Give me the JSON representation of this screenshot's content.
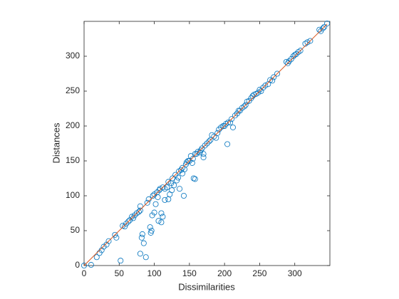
{
  "chart_data": {
    "type": "scatter",
    "xlabel": "Dissimilarities",
    "ylabel": "Distances",
    "xlim": [
      0,
      350
    ],
    "ylim": [
      0,
      350
    ],
    "xticks": [
      0,
      50,
      100,
      150,
      200,
      250,
      300
    ],
    "yticks": [
      0,
      50,
      100,
      150,
      200,
      250,
      300
    ],
    "series": [
      {
        "type": "scatter",
        "color": "#0072bd",
        "x": [
          0,
          10,
          18,
          22,
          25,
          28,
          32,
          35,
          44,
          46,
          52,
          55,
          58,
          60,
          63,
          65,
          68,
          70,
          72,
          75,
          78,
          80,
          80,
          82,
          83,
          80,
          85,
          88,
          90,
          92,
          94,
          95,
          96,
          97,
          98,
          100,
          100,
          102,
          104,
          105,
          106,
          107,
          108,
          110,
          110,
          112,
          112,
          115,
          115,
          118,
          120,
          120,
          122,
          124,
          125,
          126,
          128,
          130,
          132,
          134,
          135,
          136,
          138,
          140,
          140,
          142,
          143,
          145,
          146,
          148,
          150,
          152,
          154,
          155,
          156,
          158,
          158,
          160,
          162,
          165,
          166,
          168,
          170,
          170,
          172,
          175,
          178,
          180,
          182,
          185,
          188,
          190,
          192,
          195,
          198,
          200,
          202,
          204,
          205,
          208,
          210,
          212,
          215,
          218,
          220,
          222,
          225,
          228,
          230,
          232,
          235,
          238,
          240,
          242,
          245,
          248,
          250,
          252,
          255,
          258,
          262,
          265,
          268,
          270,
          275,
          288,
          290,
          292,
          295,
          298,
          300,
          302,
          305,
          308,
          315,
          318,
          322,
          335,
          337,
          340,
          342,
          346
        ],
        "y": [
          0,
          1,
          12,
          18,
          22,
          27,
          30,
          35,
          44,
          40,
          7,
          57,
          56,
          60,
          63,
          65,
          70,
          68,
          72,
          75,
          77,
          79,
          85,
          40,
          45,
          17,
          32,
          12,
          90,
          95,
          55,
          47,
          50,
          72,
          100,
          102,
          76,
          88,
          105,
          98,
          64,
          108,
          110,
          62,
          75,
          112,
          70,
          94,
          110,
          112,
          120,
          95,
          102,
          118,
          108,
          125,
          115,
          130,
          122,
          126,
          135,
          110,
          137,
          140,
          132,
          100,
          138,
          145,
          148,
          150,
          150,
          157,
          147,
          153,
          125,
          124,
          160,
          160,
          163,
          162,
          165,
          168,
          160,
          155,
          172,
          175,
          178,
          180,
          187,
          185,
          183,
          190,
          195,
          198,
          200,
          200,
          203,
          174,
          205,
          205,
          210,
          198,
          215,
          218,
          222,
          222,
          226,
          228,
          230,
          235,
          236,
          240,
          243,
          245,
          246,
          248,
          252,
          250,
          255,
          258,
          260,
          266,
          265,
          270,
          275,
          292,
          290,
          293,
          296,
          300,
          302,
          303,
          306,
          308,
          318,
          320,
          322,
          338,
          336,
          340,
          342,
          347
        ]
      },
      {
        "type": "line",
        "color": "#d95319",
        "x": [
          0,
          346
        ],
        "y": [
          0,
          346
        ]
      }
    ]
  }
}
